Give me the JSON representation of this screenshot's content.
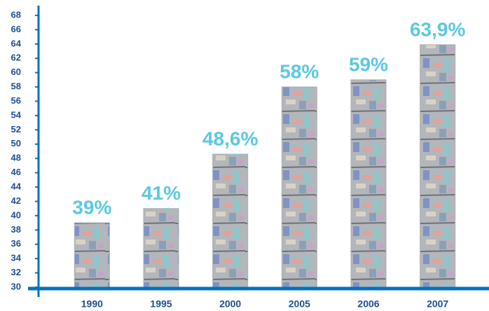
{
  "chart_data": {
    "type": "bar",
    "categories": [
      "1990",
      "1995",
      "2000",
      "2005",
      "2006",
      "2007"
    ],
    "values": [
      39,
      41,
      48.6,
      58,
      59,
      63.9
    ],
    "value_labels": [
      "39%",
      "41%",
      "48,6%",
      "58%",
      "59%",
      "63,9%"
    ],
    "color": "#a9aeb3",
    "ylim": [
      30,
      68
    ],
    "yticks": [
      30,
      32,
      34,
      36,
      38,
      40,
      42,
      44,
      46,
      48,
      50,
      52,
      54,
      56,
      58,
      60,
      62,
      64,
      66,
      68
    ],
    "grid": false
  }
}
